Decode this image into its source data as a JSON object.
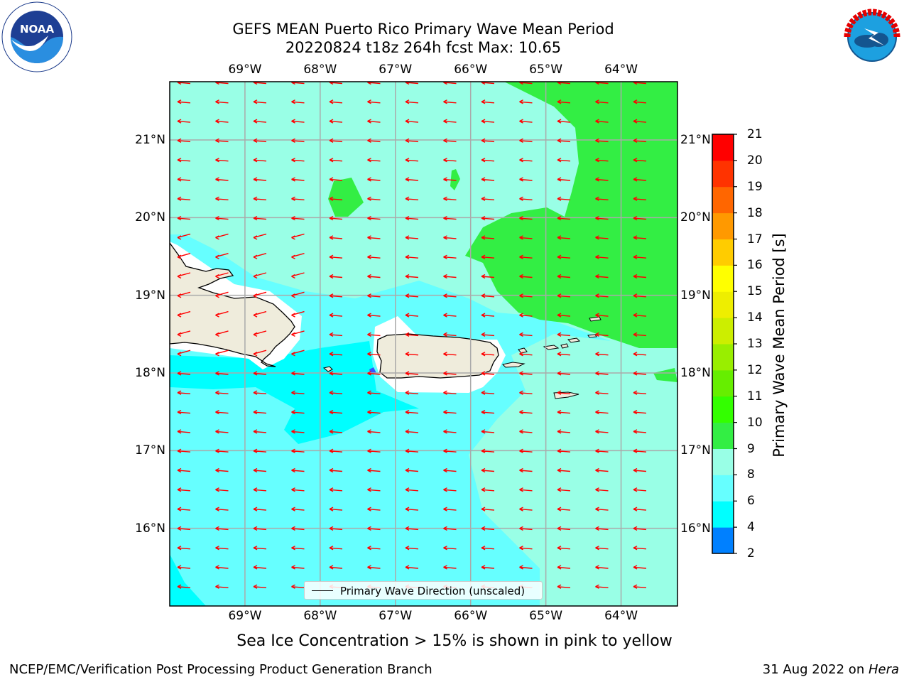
{
  "header": {
    "title_line1": "GEFS MEAN Puerto Rico Primary Wave Mean Period",
    "title_line2": "20220824 t18z 264h fcst   Max: 10.65"
  },
  "logos": {
    "left": {
      "name": "noaa-logo",
      "text": "NOAA",
      "ring_text": "NATIONAL OCEANIC AND ATMOSPHERIC ADMINISTRATION · U.S. DEPARTMENT OF COMMERCE"
    },
    "right": {
      "name": "nws-logo",
      "ring_text": "NATIONAL WEATHER SERVICE"
    }
  },
  "map": {
    "lon_ticks": [
      "69°W",
      "68°W",
      "67°W",
      "66°W",
      "65°W",
      "64°W"
    ],
    "lat_ticks": [
      "21°N",
      "20°N",
      "19°N",
      "18°N",
      "17°N",
      "16°N"
    ],
    "lon_values": [
      -69,
      -68,
      -67,
      -66,
      -65,
      -64
    ],
    "lat_values": [
      21,
      20,
      19,
      18,
      17,
      16
    ],
    "extent": {
      "lon_min": -70.0,
      "lon_max": -63.25,
      "lat_min": 15.0,
      "lat_max": 21.75
    },
    "gridlines": true,
    "wave_direction": "westward",
    "colors": {
      "band_6_8": "#00ffff",
      "band_8_9": "#66ffff",
      "band_9_10": "#99ffe6",
      "band_10_11": "#33ee44",
      "land": "#efecdc",
      "no_data": "#ffffff",
      "arrow": "#ff0000"
    }
  },
  "legend": {
    "label": "Primary Wave Direction (unscaled)"
  },
  "colorbar": {
    "title": "Primary Wave Mean Period [s]",
    "ticks": [
      "21",
      "20",
      "19",
      "18",
      "17",
      "16",
      "15",
      "14",
      "13",
      "12",
      "11",
      "10",
      "9",
      "8",
      "6",
      "4",
      "2"
    ],
    "levels": [
      2,
      4,
      6,
      8,
      9,
      10,
      11,
      12,
      13,
      14,
      15,
      16,
      17,
      18,
      19,
      20,
      21
    ],
    "colors": [
      "#0000ff",
      "#0080ff",
      "#00ffff",
      "#66ffff",
      "#99ffe6",
      "#33ee44",
      "#33ff00",
      "#66ee00",
      "#99ee00",
      "#ccee00",
      "#eeee00",
      "#ffff00",
      "#ffcc00",
      "#ff9900",
      "#ff6600",
      "#ff3300",
      "#ff0000"
    ]
  },
  "footer": {
    "footnote": "Sea Ice Concentration > 15% is shown in pink to yellow",
    "credit_left": "NCEP/EMC/Verification Post Processing Product Generation Branch",
    "credit_date": "31 Aug 2022 on ",
    "credit_host": "Hera"
  }
}
